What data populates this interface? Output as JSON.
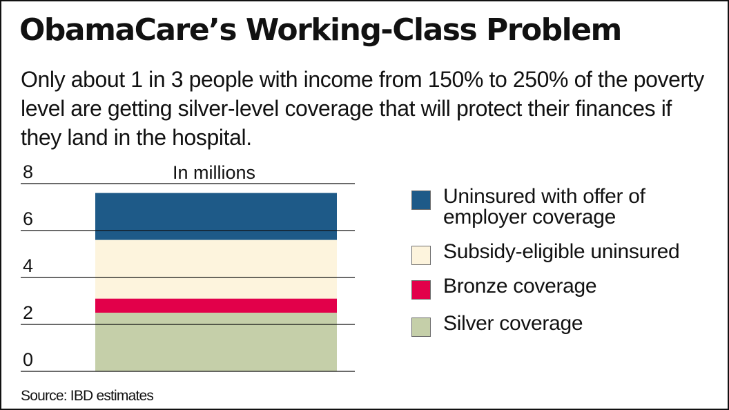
{
  "title": "ObamaCare’s Working-Class Problem",
  "subtitle": "Only about 1 in 3 people with income from 150% to 250% of the poverty level are getting silver-level coverage that will protect their finances if they land in the hospital.",
  "source": "Source: IBD estimates",
  "chart_data": {
    "type": "bar",
    "stacked": true,
    "unit_label": "In millions",
    "ylim": [
      0,
      8
    ],
    "yticks": [
      "0",
      "2",
      "4",
      "6",
      "8"
    ],
    "grid": true,
    "legend_position": "right",
    "series": [
      {
        "name": "Silver coverage",
        "value": 2.5,
        "color": "#c5cfa9"
      },
      {
        "name": "Bronze coverage",
        "value": 0.6,
        "color": "#e2004a"
      },
      {
        "name": "Subsidy-eligible uninsured",
        "value": 2.5,
        "color": "#fdf4dd"
      },
      {
        "name": "Uninsured with offer of\nemployer coverage",
        "value": 2.0,
        "color": "#1e5a88"
      }
    ]
  }
}
